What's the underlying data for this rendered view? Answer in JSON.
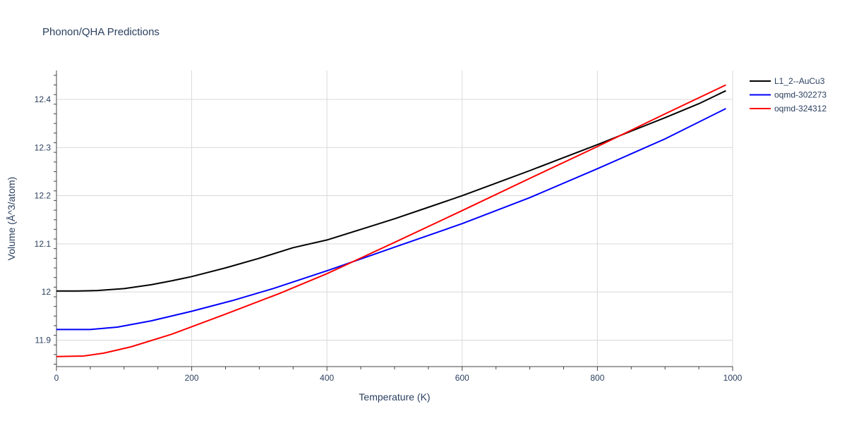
{
  "chart_data": {
    "type": "line",
    "title": "Phonon/QHA Predictions",
    "xlabel": "Temperature (K)",
    "ylabel": "Volume (Å^3/atom)",
    "xlim": [
      0,
      1000
    ],
    "ylim": [
      11.845,
      12.46
    ],
    "xticks": [
      0,
      200,
      400,
      600,
      800,
      1000
    ],
    "xtick_labels": [
      "0",
      "200",
      "400",
      "600",
      "800",
      "1000"
    ],
    "yticks": [
      11.9,
      12.0,
      12.1,
      12.2,
      12.3,
      12.4
    ],
    "ytick_labels": [
      "11.9",
      "12",
      "12.1",
      "12.2",
      "12.3",
      "12.4"
    ],
    "grid": true,
    "legend_position": "top-right",
    "series": [
      {
        "name": "L1_2--AuCu3",
        "color": "#000000",
        "x": [
          0,
          30,
          60,
          100,
          140,
          170,
          200,
          250,
          300,
          350,
          400,
          450,
          500,
          550,
          600,
          650,
          700,
          750,
          800,
          850,
          900,
          950,
          990
        ],
        "y": [
          12.002,
          12.002,
          12.003,
          12.007,
          12.015,
          12.023,
          12.032,
          12.05,
          12.07,
          12.092,
          12.108,
          12.13,
          12.152,
          12.176,
          12.2,
          12.226,
          12.252,
          12.279,
          12.306,
          12.334,
          12.362,
          12.391,
          12.418
        ]
      },
      {
        "name": "oqmd-302273",
        "color": "#0000ff",
        "x": [
          0,
          30,
          50,
          90,
          140,
          200,
          260,
          320,
          400,
          500,
          600,
          700,
          800,
          900,
          990
        ],
        "y": [
          11.922,
          11.922,
          11.922,
          11.927,
          11.94,
          11.96,
          11.982,
          12.007,
          12.044,
          12.093,
          12.142,
          12.196,
          12.256,
          12.318,
          12.381
        ]
      },
      {
        "name": "oqmd-324312",
        "color": "#ff0000",
        "x": [
          0,
          40,
          70,
          110,
          170,
          250,
          330,
          400,
          500,
          600,
          700,
          800,
          900,
          990
        ],
        "y": [
          11.866,
          11.867,
          11.873,
          11.886,
          11.912,
          11.954,
          11.997,
          12.038,
          12.103,
          12.169,
          12.236,
          12.302,
          12.37,
          12.43
        ]
      }
    ]
  }
}
